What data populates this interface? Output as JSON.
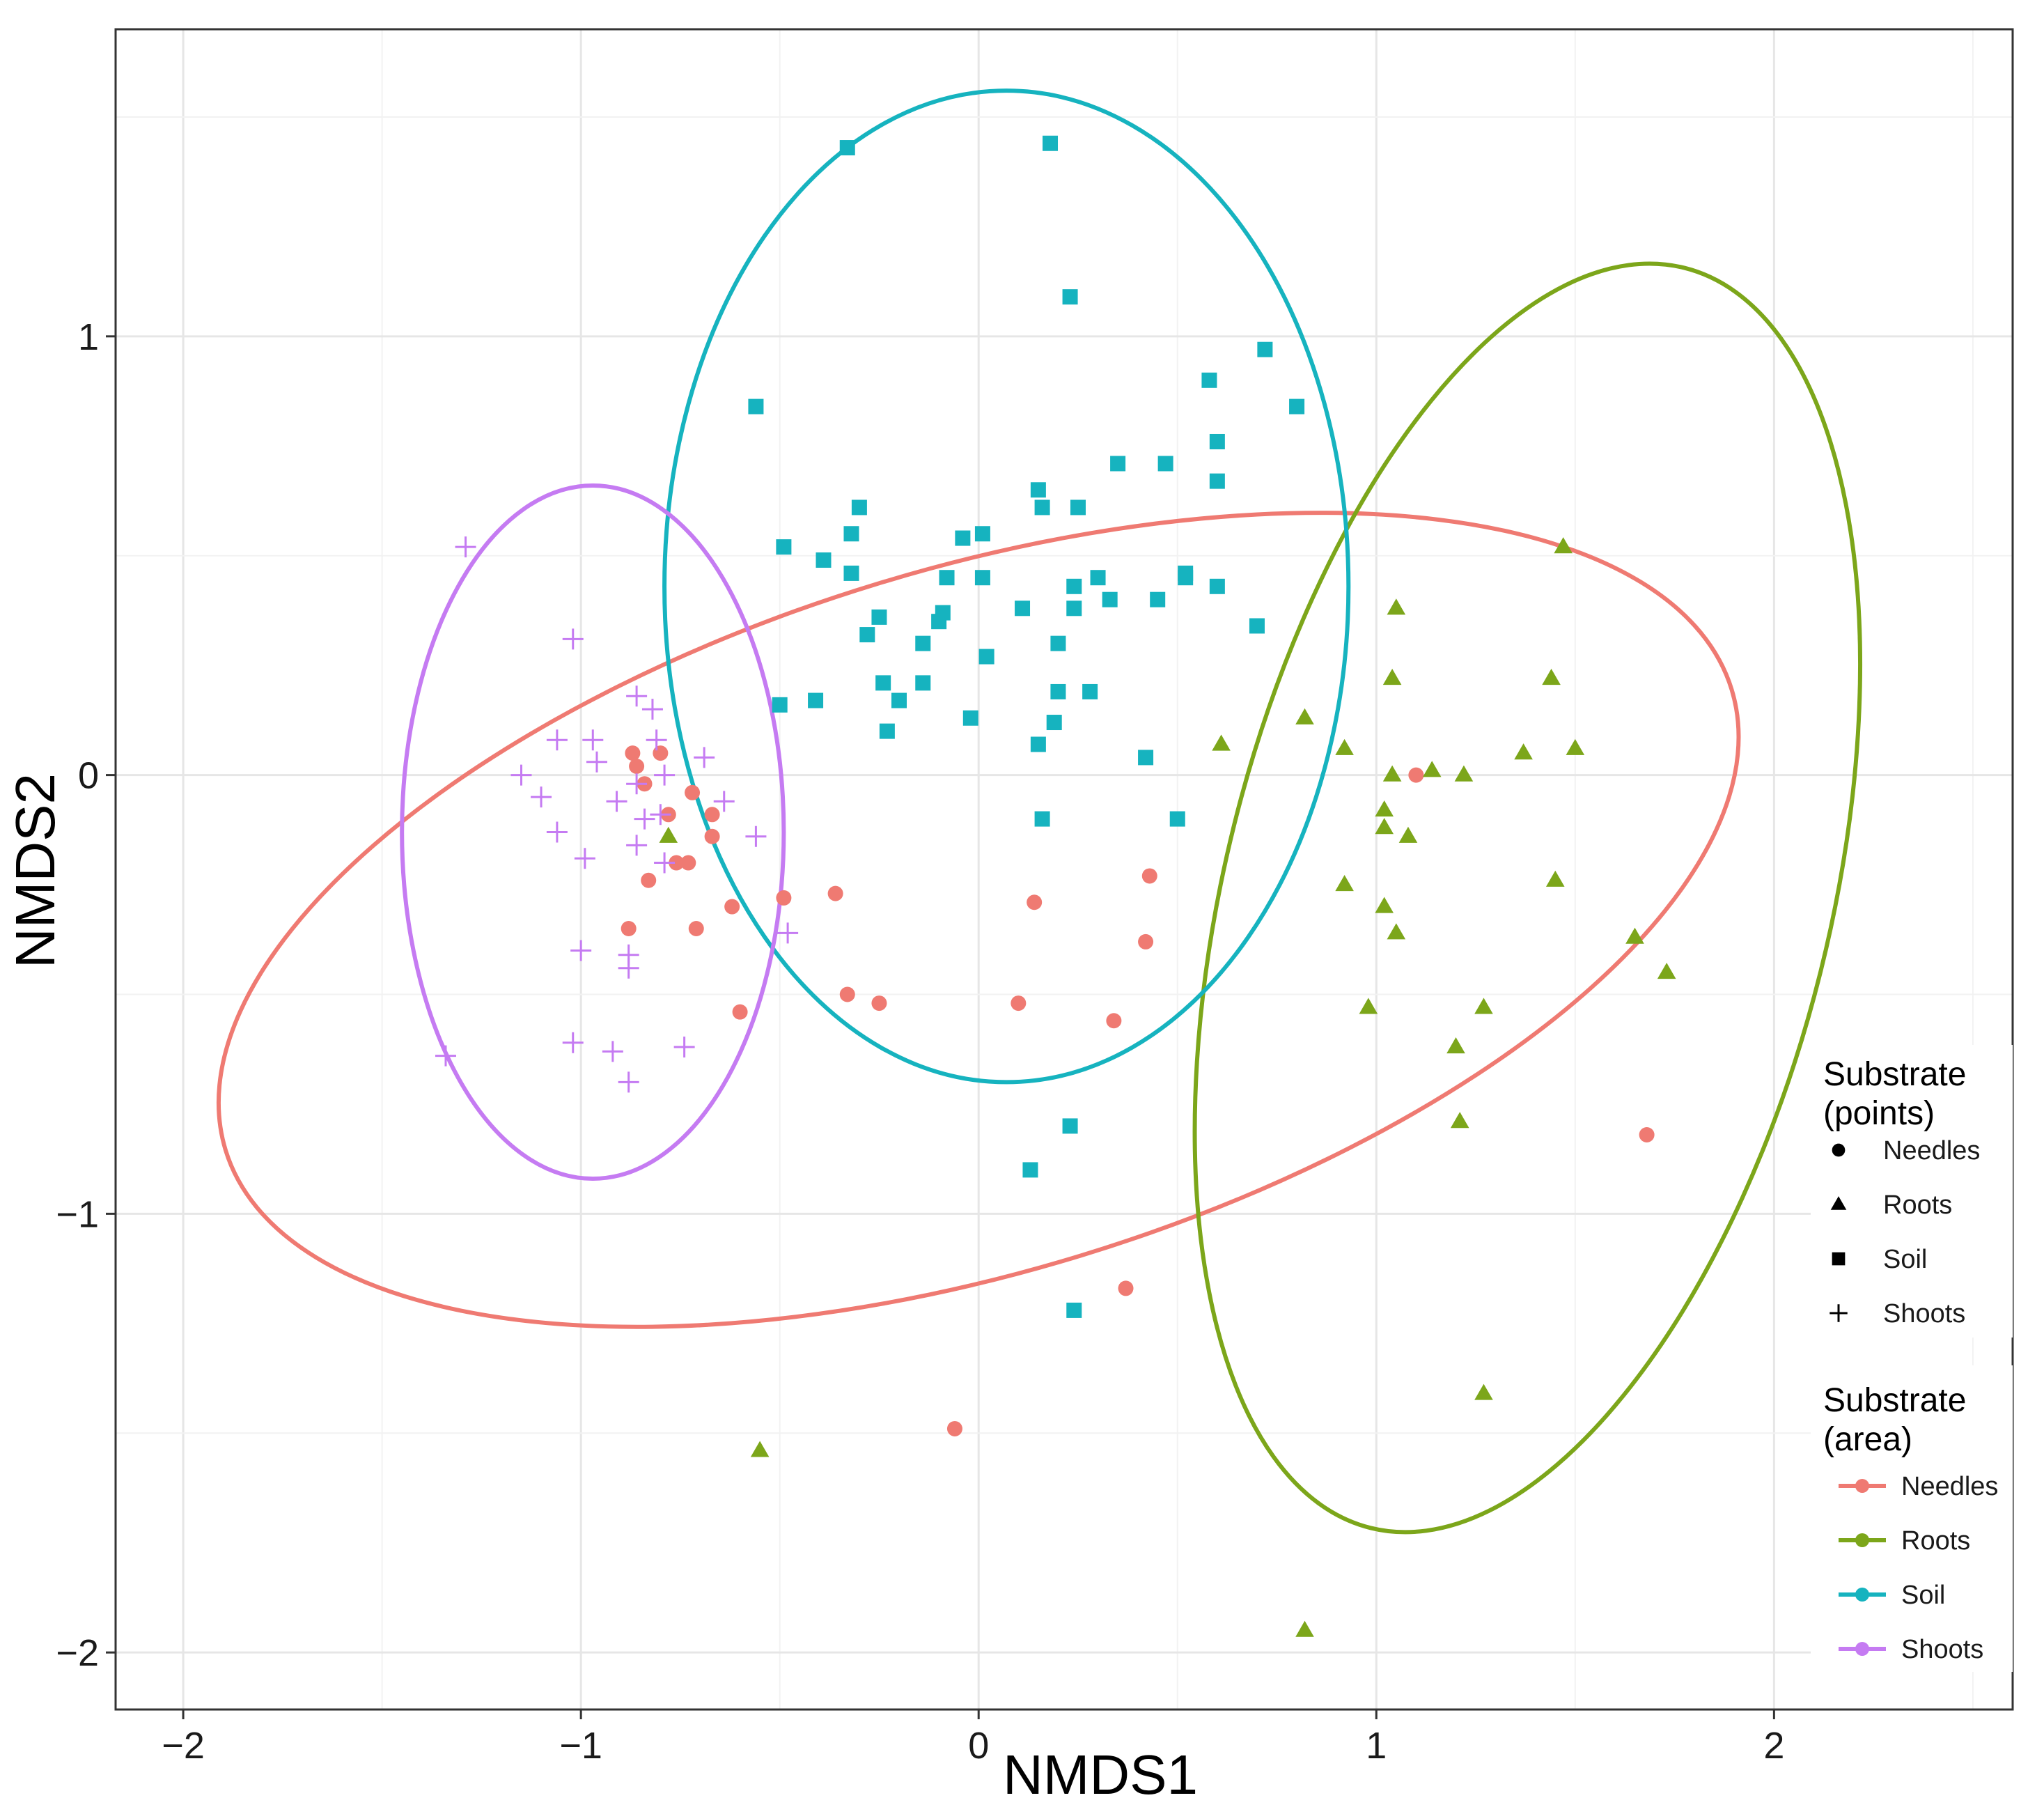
{
  "chart_data": {
    "type": "scatter",
    "xlabel": "NMDS1",
    "ylabel": "NMDS2",
    "xlim": [
      -2.17,
      2.6
    ],
    "ylim": [
      -2.13,
      1.7
    ],
    "grid": true,
    "x_ticks": [
      -2,
      -1,
      0,
      1,
      2
    ],
    "x_tick_labels": [
      "−2",
      "−1",
      "0",
      "1",
      "2"
    ],
    "y_ticks": [
      -2,
      -1,
      0,
      1
    ],
    "y_tick_labels": [
      "−2",
      "−1",
      "0",
      "1"
    ],
    "colors": {
      "Needles": "#ef7a72",
      "Roots": "#7ca61a",
      "Soil": "#16b3bf",
      "Shoots": "#c57bf2"
    },
    "legend_points": {
      "title": "Substrate\n(points)",
      "entries": [
        {
          "label": "Needles",
          "shape": "circle"
        },
        {
          "label": "Roots",
          "shape": "triangle"
        },
        {
          "label": "Soil",
          "shape": "square"
        },
        {
          "label": "Shoots",
          "shape": "plus"
        }
      ]
    },
    "legend_area": {
      "title": "Substrate\n(area)",
      "entries": [
        {
          "label": "Needles",
          "color": "#ef7a72"
        },
        {
          "label": "Roots",
          "color": "#7ca61a"
        },
        {
          "label": "Soil",
          "color": "#16b3bf"
        },
        {
          "label": "Shoots",
          "color": "#c57bf2"
        }
      ]
    },
    "legend_position": "right",
    "ellipses": [
      {
        "series": "Needles",
        "cx": 0.0,
        "cy": -0.33,
        "rx": 1.98,
        "ry": 0.8,
        "angle_deg": -17
      },
      {
        "series": "Roots",
        "cx": 1.38,
        "cy": -0.28,
        "rx": 0.76,
        "ry": 1.48,
        "angle_deg": 14
      },
      {
        "series": "Soil",
        "cx": 0.07,
        "cy": 0.43,
        "rx": 0.86,
        "ry": 1.13,
        "angle_deg": 0
      },
      {
        "series": "Shoots",
        "cx": -0.97,
        "cy": -0.13,
        "rx": 0.48,
        "ry": 0.79,
        "angle_deg": 0
      }
    ],
    "series": [
      {
        "name": "Needles",
        "shape": "circle",
        "points": [
          [
            -0.87,
            0.05
          ],
          [
            -0.86,
            0.02
          ],
          [
            -0.8,
            0.05
          ],
          [
            -0.84,
            -0.02
          ],
          [
            -0.72,
            -0.04
          ],
          [
            -0.78,
            -0.09
          ],
          [
            -0.67,
            -0.09
          ],
          [
            -0.67,
            -0.14
          ],
          [
            -0.73,
            -0.2
          ],
          [
            -0.76,
            -0.2
          ],
          [
            -0.83,
            -0.24
          ],
          [
            -0.62,
            -0.3
          ],
          [
            -0.49,
            -0.28
          ],
          [
            -0.36,
            -0.27
          ],
          [
            -0.88,
            -0.35
          ],
          [
            -0.71,
            -0.35
          ],
          [
            -0.6,
            -0.54
          ],
          [
            -0.33,
            -0.5
          ],
          [
            -0.25,
            -0.52
          ],
          [
            0.1,
            -0.52
          ],
          [
            0.14,
            -0.29
          ],
          [
            0.34,
            -0.56
          ],
          [
            0.42,
            -0.38
          ],
          [
            0.43,
            -0.23
          ],
          [
            0.37,
            -1.17
          ],
          [
            -0.06,
            -1.49
          ],
          [
            1.1,
            0.0
          ],
          [
            1.68,
            -0.82
          ]
        ]
      },
      {
        "name": "Roots",
        "shape": "triangle",
        "points": [
          [
            -0.78,
            -0.14
          ],
          [
            0.61,
            0.07
          ],
          [
            0.82,
            0.13
          ],
          [
            0.92,
            0.06
          ],
          [
            1.05,
            0.38
          ],
          [
            1.04,
            0.22
          ],
          [
            1.04,
            0.0
          ],
          [
            1.14,
            0.01
          ],
          [
            1.22,
            0.0
          ],
          [
            1.02,
            -0.08
          ],
          [
            1.02,
            -0.12
          ],
          [
            1.08,
            -0.14
          ],
          [
            0.92,
            -0.25
          ],
          [
            1.02,
            -0.3
          ],
          [
            1.05,
            -0.36
          ],
          [
            0.98,
            -0.53
          ],
          [
            1.2,
            -0.62
          ],
          [
            1.27,
            -0.53
          ],
          [
            1.21,
            -0.79
          ],
          [
            1.37,
            0.05
          ],
          [
            1.44,
            0.22
          ],
          [
            1.47,
            0.52
          ],
          [
            1.5,
            0.06
          ],
          [
            1.45,
            -0.24
          ],
          [
            1.65,
            -0.37
          ],
          [
            1.73,
            -0.45
          ],
          [
            -0.55,
            -1.54
          ],
          [
            1.27,
            -1.41
          ],
          [
            0.82,
            -1.95
          ]
        ]
      },
      {
        "name": "Soil",
        "shape": "square",
        "points": [
          [
            -0.33,
            1.43
          ],
          [
            0.18,
            1.44
          ],
          [
            0.23,
            1.09
          ],
          [
            -0.56,
            0.84
          ],
          [
            0.72,
            0.97
          ],
          [
            0.58,
            0.9
          ],
          [
            0.8,
            0.84
          ],
          [
            0.6,
            0.76
          ],
          [
            0.6,
            0.67
          ],
          [
            0.35,
            0.71
          ],
          [
            0.47,
            0.71
          ],
          [
            0.15,
            0.65
          ],
          [
            0.16,
            0.61
          ],
          [
            0.25,
            0.61
          ],
          [
            -0.3,
            0.61
          ],
          [
            -0.32,
            0.55
          ],
          [
            -0.04,
            0.54
          ],
          [
            0.01,
            0.55
          ],
          [
            -0.49,
            0.52
          ],
          [
            -0.39,
            0.49
          ],
          [
            -0.32,
            0.46
          ],
          [
            -0.08,
            0.45
          ],
          [
            0.01,
            0.45
          ],
          [
            0.3,
            0.45
          ],
          [
            0.52,
            0.46
          ],
          [
            0.6,
            0.43
          ],
          [
            0.24,
            0.43
          ],
          [
            0.52,
            0.45
          ],
          [
            0.11,
            0.38
          ],
          [
            0.24,
            0.38
          ],
          [
            0.33,
            0.4
          ],
          [
            0.45,
            0.4
          ],
          [
            -0.25,
            0.36
          ],
          [
            -0.09,
            0.37
          ],
          [
            -0.1,
            0.35
          ],
          [
            -0.28,
            0.32
          ],
          [
            -0.14,
            0.3
          ],
          [
            0.2,
            0.3
          ],
          [
            0.7,
            0.34
          ],
          [
            0.02,
            0.27
          ],
          [
            -0.24,
            0.21
          ],
          [
            -0.14,
            0.21
          ],
          [
            0.2,
            0.19
          ],
          [
            0.28,
            0.19
          ],
          [
            -0.5,
            0.16
          ],
          [
            -0.41,
            0.17
          ],
          [
            -0.2,
            0.17
          ],
          [
            -0.02,
            0.13
          ],
          [
            0.19,
            0.12
          ],
          [
            -0.23,
            0.1
          ],
          [
            0.15,
            0.07
          ],
          [
            0.42,
            0.04
          ],
          [
            0.16,
            -0.1
          ],
          [
            0.5,
            -0.1
          ],
          [
            0.23,
            -0.8
          ],
          [
            0.13,
            -0.9
          ],
          [
            0.24,
            -1.22
          ]
        ]
      },
      {
        "name": "Shoots",
        "shape": "plus",
        "points": [
          [
            -1.29,
            0.52
          ],
          [
            -1.02,
            0.31
          ],
          [
            -0.86,
            0.18
          ],
          [
            -0.82,
            0.15
          ],
          [
            -1.06,
            0.08
          ],
          [
            -0.97,
            0.08
          ],
          [
            -0.81,
            0.08
          ],
          [
            -0.96,
            0.03
          ],
          [
            -0.69,
            0.04
          ],
          [
            -1.15,
            0.0
          ],
          [
            -1.1,
            -0.05
          ],
          [
            -0.86,
            -0.02
          ],
          [
            -0.79,
            0.0
          ],
          [
            -0.91,
            -0.06
          ],
          [
            -0.64,
            -0.06
          ],
          [
            -1.06,
            -0.13
          ],
          [
            -0.84,
            -0.1
          ],
          [
            -0.8,
            -0.09
          ],
          [
            -0.56,
            -0.14
          ],
          [
            -0.86,
            -0.16
          ],
          [
            -0.99,
            -0.19
          ],
          [
            -0.79,
            -0.2
          ],
          [
            -0.48,
            -0.36
          ],
          [
            -1.0,
            -0.4
          ],
          [
            -0.88,
            -0.41
          ],
          [
            -0.88,
            -0.44
          ],
          [
            -1.02,
            -0.61
          ],
          [
            -0.92,
            -0.63
          ],
          [
            -0.74,
            -0.62
          ],
          [
            -0.88,
            -0.7
          ],
          [
            -1.34,
            -0.64
          ]
        ]
      }
    ]
  }
}
